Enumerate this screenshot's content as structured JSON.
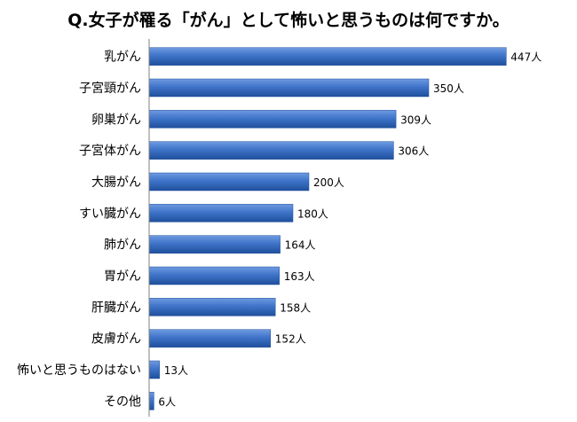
{
  "chart_data": {
    "type": "bar",
    "orientation": "horizontal",
    "title": "Q.女子が罹る「がん」として怖いと思うものは何ですか。",
    "categories": [
      "乳がん",
      "子宮頸がん",
      "卵巣がん",
      "子宮体がん",
      "大腸がん",
      "すい臓がん",
      "肺がん",
      "胃がん",
      "肝臓がん",
      "皮膚がん",
      "怖いと思うものはない",
      "その他"
    ],
    "values": [
      447,
      350,
      309,
      306,
      200,
      180,
      164,
      163,
      158,
      152,
      13,
      6
    ],
    "value_labels": [
      "447人",
      "350人",
      "309人",
      "306人",
      "200人",
      "180人",
      "164人",
      "163人",
      "158人",
      "152人",
      "13人",
      "6人"
    ],
    "unit": "人",
    "xlim": [
      0,
      480
    ],
    "grid": false,
    "legend": "none",
    "colors": {
      "bar": "#3f74c9",
      "bar_dark": "#1f4f9c",
      "bar_light": "#6f9ae0",
      "axis": "#808080",
      "text": "#000000"
    }
  }
}
